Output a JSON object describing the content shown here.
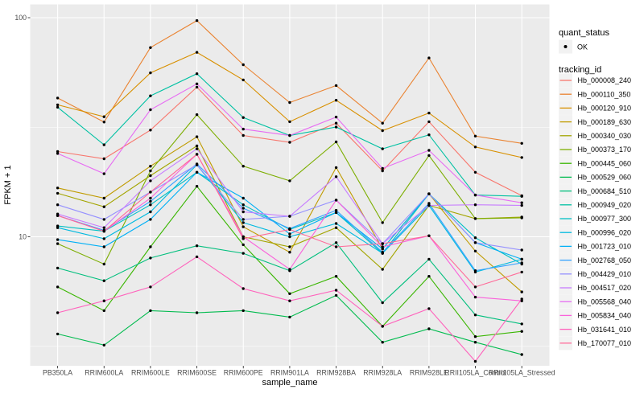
{
  "figure": {
    "y_tick_labels": [
      "100",
      "10"
    ],
    "legend": {
      "quant_status_title": "quant_status",
      "quant_status_ok_label": "OK",
      "tracking_id_title": "tracking_id"
    }
  },
  "chart_data": {
    "type": "line",
    "xlabel": "sample_name",
    "ylabel": "FPKM + 1",
    "yscale": "log10",
    "ylim": [
      2.5,
      115
    ],
    "y_major_ticks": [
      100,
      10
    ],
    "y_minor_gridlines": [
      31.62,
      3.162
    ],
    "grid": true,
    "legend_position": "right",
    "panel_bg": "#EBEBEB",
    "grid_color": "#FFFFFF",
    "point_color": "#000000",
    "quant_status_value": "OK",
    "categories": [
      "PB350LA",
      "RRIM600LA",
      "RRIM600LE",
      "RRIM600SE",
      "RRIM600PE",
      "RRIM901LA",
      "RRIM928BA",
      "RRIM928LA",
      "RRIM928LE",
      "RRII105LA_Control",
      "RRII105LA_Stressed"
    ],
    "series": [
      {
        "name": "Hb_000008_240",
        "color": "#F8766D",
        "values": [
          24.5,
          22.7,
          30.7,
          48.2,
          29.0,
          27.0,
          33.0,
          20.0,
          33.5,
          19.7,
          15.4
        ]
      },
      {
        "name": "Hb_000110_350",
        "color": "#EA8331",
        "values": [
          43.0,
          33.4,
          73.0,
          97.0,
          61.0,
          41.0,
          49.0,
          33.0,
          65.5,
          28.8,
          26.7
        ]
      },
      {
        "name": "Hb_000120_910",
        "color": "#D89000",
        "values": [
          40.0,
          35.3,
          56.0,
          69.5,
          52.0,
          33.5,
          42.0,
          30.5,
          36.7,
          25.7,
          23.0
        ]
      },
      {
        "name": "Hb_000189_630",
        "color": "#C09B00",
        "values": [
          16.7,
          15.0,
          21.0,
          28.6,
          11.1,
          8.5,
          20.7,
          8.8,
          15.7,
          8.6,
          5.6
        ]
      },
      {
        "name": "Hb_000340_030",
        "color": "#A3A500",
        "values": [
          15.8,
          13.7,
          19.0,
          26.0,
          10.0,
          9.0,
          11.0,
          7.1,
          13.9,
          12.1,
          12.3
        ]
      },
      {
        "name": "Hb_000373_170",
        "color": "#7CAE00",
        "values": [
          9.3,
          7.5,
          20.0,
          36.1,
          21.0,
          18.0,
          27.1,
          11.6,
          23.5,
          12.1,
          12.2
        ]
      },
      {
        "name": "Hb_000445_060",
        "color": "#39B600",
        "values": [
          5.9,
          4.6,
          9.0,
          17.0,
          9.2,
          5.5,
          6.6,
          3.9,
          6.6,
          3.5,
          3.7
        ]
      },
      {
        "name": "Hb_000529_060",
        "color": "#00BB4E",
        "values": [
          3.6,
          3.2,
          4.6,
          4.5,
          4.6,
          4.3,
          5.4,
          3.3,
          3.8,
          3.3,
          2.9
        ]
      },
      {
        "name": "Hb_000684_510",
        "color": "#00BF7D",
        "values": [
          7.2,
          6.3,
          8.0,
          9.1,
          8.4,
          7.0,
          9.4,
          5.0,
          7.9,
          4.4,
          4.0
        ]
      },
      {
        "name": "Hb_000949_020",
        "color": "#00C1A3",
        "values": [
          39.0,
          26.3,
          44.0,
          55.5,
          35.0,
          29.0,
          31.7,
          25.2,
          29.2,
          15.5,
          15.3
        ]
      },
      {
        "name": "Hb_000977_300",
        "color": "#00BFC4",
        "values": [
          11.2,
          10.6,
          14.0,
          19.7,
          14.0,
          10.8,
          12.9,
          8.4,
          15.7,
          9.9,
          7.5
        ]
      },
      {
        "name": "Hb_000996_020",
        "color": "#00BAE0",
        "values": [
          11.0,
          9.8,
          13.0,
          21.3,
          11.6,
          10.0,
          11.5,
          8.4,
          13.9,
          6.9,
          7.9
        ]
      },
      {
        "name": "Hb_001723_010",
        "color": "#00B0F6",
        "values": [
          9.7,
          9.0,
          12.0,
          19.7,
          15.0,
          10.3,
          12.9,
          8.8,
          15.7,
          9.4,
          7.9
        ]
      },
      {
        "name": "Hb_002768_050",
        "color": "#35A2FF",
        "values": [
          12.5,
          10.7,
          14.5,
          21.5,
          13.5,
          10.9,
          13.2,
          8.5,
          14.2,
          7.0,
          7.6
        ]
      },
      {
        "name": "Hb_004429_010",
        "color": "#9590FF",
        "values": [
          14.0,
          12.0,
          16.0,
          21.3,
          12.0,
          12.4,
          14.7,
          9.3,
          15.7,
          9.4,
          8.7
        ]
      },
      {
        "name": "Hb_004517_020",
        "color": "#C77CFF",
        "values": [
          12.7,
          11.0,
          18.0,
          25.2,
          13.0,
          12.4,
          18.8,
          9.3,
          13.9,
          14.0,
          13.9
        ]
      },
      {
        "name": "Hb_005568_040",
        "color": "#E76BF3",
        "values": [
          24.0,
          19.4,
          38.0,
          49.9,
          31.0,
          29.0,
          35.2,
          20.5,
          24.8,
          15.5,
          14.3
        ]
      },
      {
        "name": "Hb_005834_040",
        "color": "#FA62DB",
        "values": [
          12.5,
          10.6,
          15.0,
          23.8,
          10.0,
          7.1,
          14.7,
          9.0,
          10.1,
          5.3,
          5.1
        ]
      },
      {
        "name": "Hb_031641_010",
        "color": "#FF62BC",
        "values": [
          4.5,
          5.1,
          5.9,
          8.1,
          5.8,
          5.1,
          5.7,
          3.9,
          4.7,
          2.7,
          5.2
        ]
      },
      {
        "name": "Hb_170077_010",
        "color": "#FF6A98",
        "values": [
          12.5,
          10.6,
          16.0,
          23.8,
          9.8,
          10.8,
          9.0,
          9.3,
          10.1,
          5.9,
          6.9
        ]
      }
    ]
  }
}
